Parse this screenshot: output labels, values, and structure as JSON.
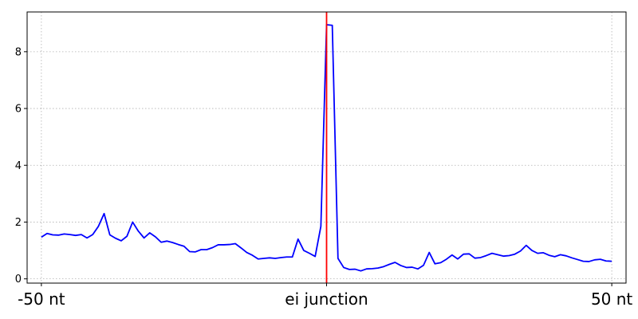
{
  "chart_data": {
    "type": "line",
    "title": "",
    "xlabel": "",
    "ylabel": "",
    "xlim": [
      -52.5,
      52.5
    ],
    "ylim": [
      -0.15,
      9.4
    ],
    "grid": true,
    "y_ticks": [
      {
        "value": 0,
        "label": "0"
      },
      {
        "value": 2,
        "label": "2"
      },
      {
        "value": 4,
        "label": "4"
      },
      {
        "value": 6,
        "label": "6"
      },
      {
        "value": 8,
        "label": "8"
      }
    ],
    "x_ticks": [
      {
        "value": -50,
        "label": "-50 nt"
      },
      {
        "value": 0,
        "label": "ei junction"
      },
      {
        "value": 50,
        "label": "50 nt"
      }
    ],
    "vline": {
      "x": 0,
      "color": "#ff0000"
    },
    "series": [
      {
        "name": "signal",
        "color": "#0000ff",
        "x": [
          -50,
          -49,
          -48,
          -47,
          -46,
          -45,
          -44,
          -43,
          -42,
          -41,
          -40,
          -39,
          -38,
          -37,
          -36,
          -35,
          -34,
          -33,
          -32,
          -31,
          -30,
          -29,
          -28,
          -27,
          -26,
          -25,
          -24,
          -23,
          -22,
          -21,
          -20,
          -19,
          -18,
          -17,
          -16,
          -15,
          -14,
          -13,
          -12,
          -11,
          -10,
          -9,
          -8,
          -7,
          -6,
          -5,
          -4,
          -3,
          -2,
          -1,
          0,
          1,
          2,
          3,
          4,
          5,
          6,
          7,
          8,
          9,
          10,
          11,
          12,
          13,
          14,
          15,
          16,
          17,
          18,
          19,
          20,
          21,
          22,
          23,
          24,
          25,
          26,
          27,
          28,
          29,
          30,
          31,
          32,
          33,
          34,
          35,
          36,
          37,
          38,
          39,
          40,
          41,
          42,
          43,
          44,
          45,
          46,
          47,
          48,
          49,
          50
        ],
        "values": [
          1.47,
          1.6,
          1.55,
          1.54,
          1.58,
          1.56,
          1.53,
          1.56,
          1.44,
          1.56,
          1.85,
          2.3,
          1.55,
          1.43,
          1.34,
          1.5,
          2.0,
          1.68,
          1.44,
          1.62,
          1.48,
          1.29,
          1.33,
          1.28,
          1.21,
          1.15,
          0.96,
          0.95,
          1.03,
          1.03,
          1.1,
          1.2,
          1.2,
          1.21,
          1.24,
          1.09,
          0.93,
          0.83,
          0.7,
          0.72,
          0.74,
          0.72,
          0.75,
          0.77,
          0.77,
          1.4,
          1.0,
          0.9,
          0.79,
          1.85,
          8.95,
          8.93,
          0.72,
          0.4,
          0.33,
          0.34,
          0.28,
          0.35,
          0.36,
          0.38,
          0.43,
          0.51,
          0.58,
          0.47,
          0.4,
          0.41,
          0.35,
          0.48,
          0.93,
          0.53,
          0.57,
          0.69,
          0.84,
          0.7,
          0.87,
          0.88,
          0.73,
          0.75,
          0.82,
          0.9,
          0.85,
          0.8,
          0.82,
          0.87,
          0.98,
          1.18,
          1.0,
          0.9,
          0.92,
          0.83,
          0.78,
          0.85,
          0.81,
          0.74,
          0.68,
          0.62,
          0.61,
          0.67,
          0.69,
          0.63,
          0.62
        ]
      }
    ]
  }
}
